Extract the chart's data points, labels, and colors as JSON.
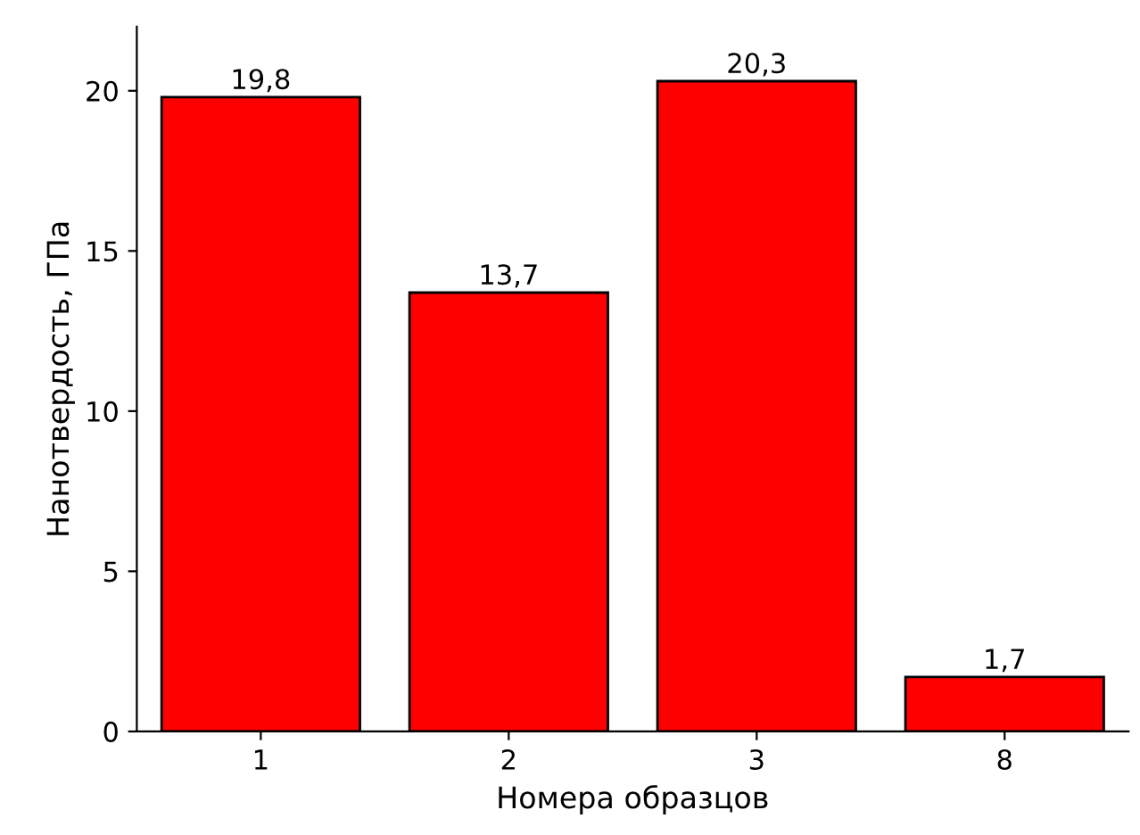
{
  "chart_data": {
    "type": "bar",
    "xlabel": "Номера образцов",
    "ylabel": "Нанотвердость, ГПа",
    "categories": [
      "1",
      "2",
      "3",
      "8"
    ],
    "values": [
      19.8,
      13.7,
      20.3,
      1.7
    ],
    "value_labels": [
      "19,8",
      "13,7",
      "20,3",
      "1,7"
    ],
    "color": "#ff0000",
    "ylim": [
      0,
      22
    ],
    "yticks": [
      0,
      5,
      10,
      15,
      20
    ],
    "grid": false,
    "legend": false
  }
}
